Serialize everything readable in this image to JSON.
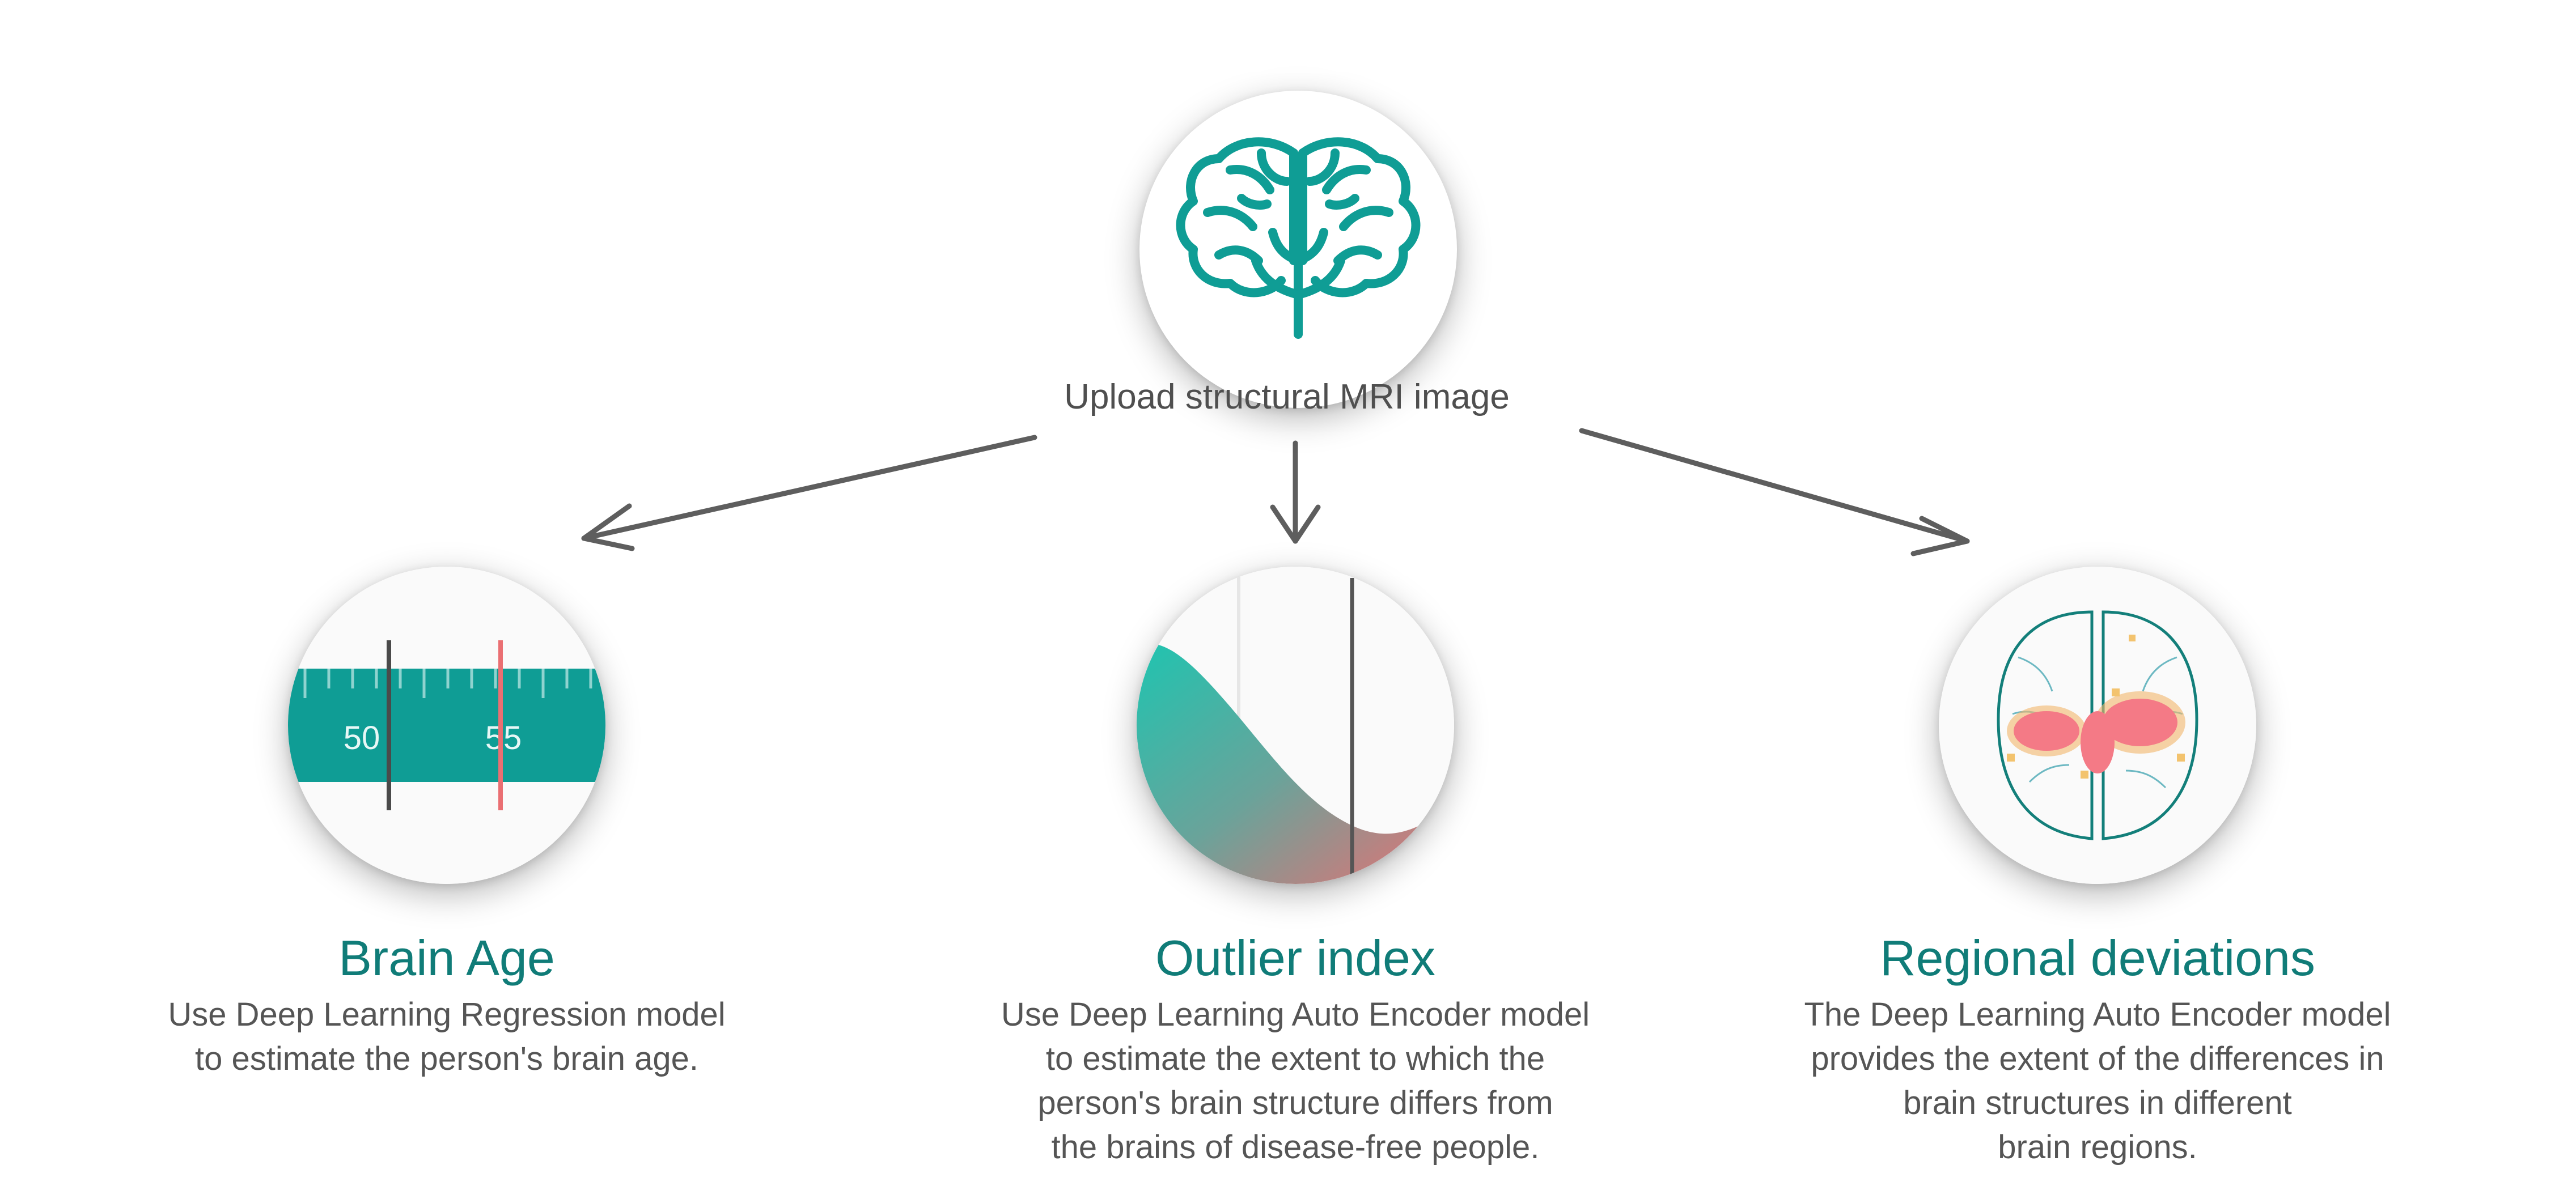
{
  "input": {
    "label": "Upload structural MRI image",
    "icon": "brain-tree-icon"
  },
  "colors": {
    "teal": "#0f9d95",
    "teal_dark": "#107c78",
    "coral": "#ea6f72",
    "arrow": "#5e5e5e",
    "text": "#555555"
  },
  "cards": [
    {
      "id": "brain-age",
      "title": "Brain Age",
      "desc": [
        "Use Deep Learning Regression model",
        "to estimate the person's brain age."
      ],
      "ruler": {
        "labels": [
          "50",
          "55"
        ],
        "marker_dark": 50.5,
        "marker_red": 55
      }
    },
    {
      "id": "outlier-index",
      "title": "Outlier index",
      "desc": [
        "Use Deep Learning Auto Encoder model",
        "to estimate the extent to which the",
        "person's brain structure differs from",
        "the brains of disease-free people."
      ]
    },
    {
      "id": "regional-deviations",
      "title": "Regional deviations",
      "desc": [
        "The Deep Learning Auto Encoder model",
        "provides the extent of the differences in",
        "brain structures in different",
        "brain regions."
      ]
    }
  ]
}
